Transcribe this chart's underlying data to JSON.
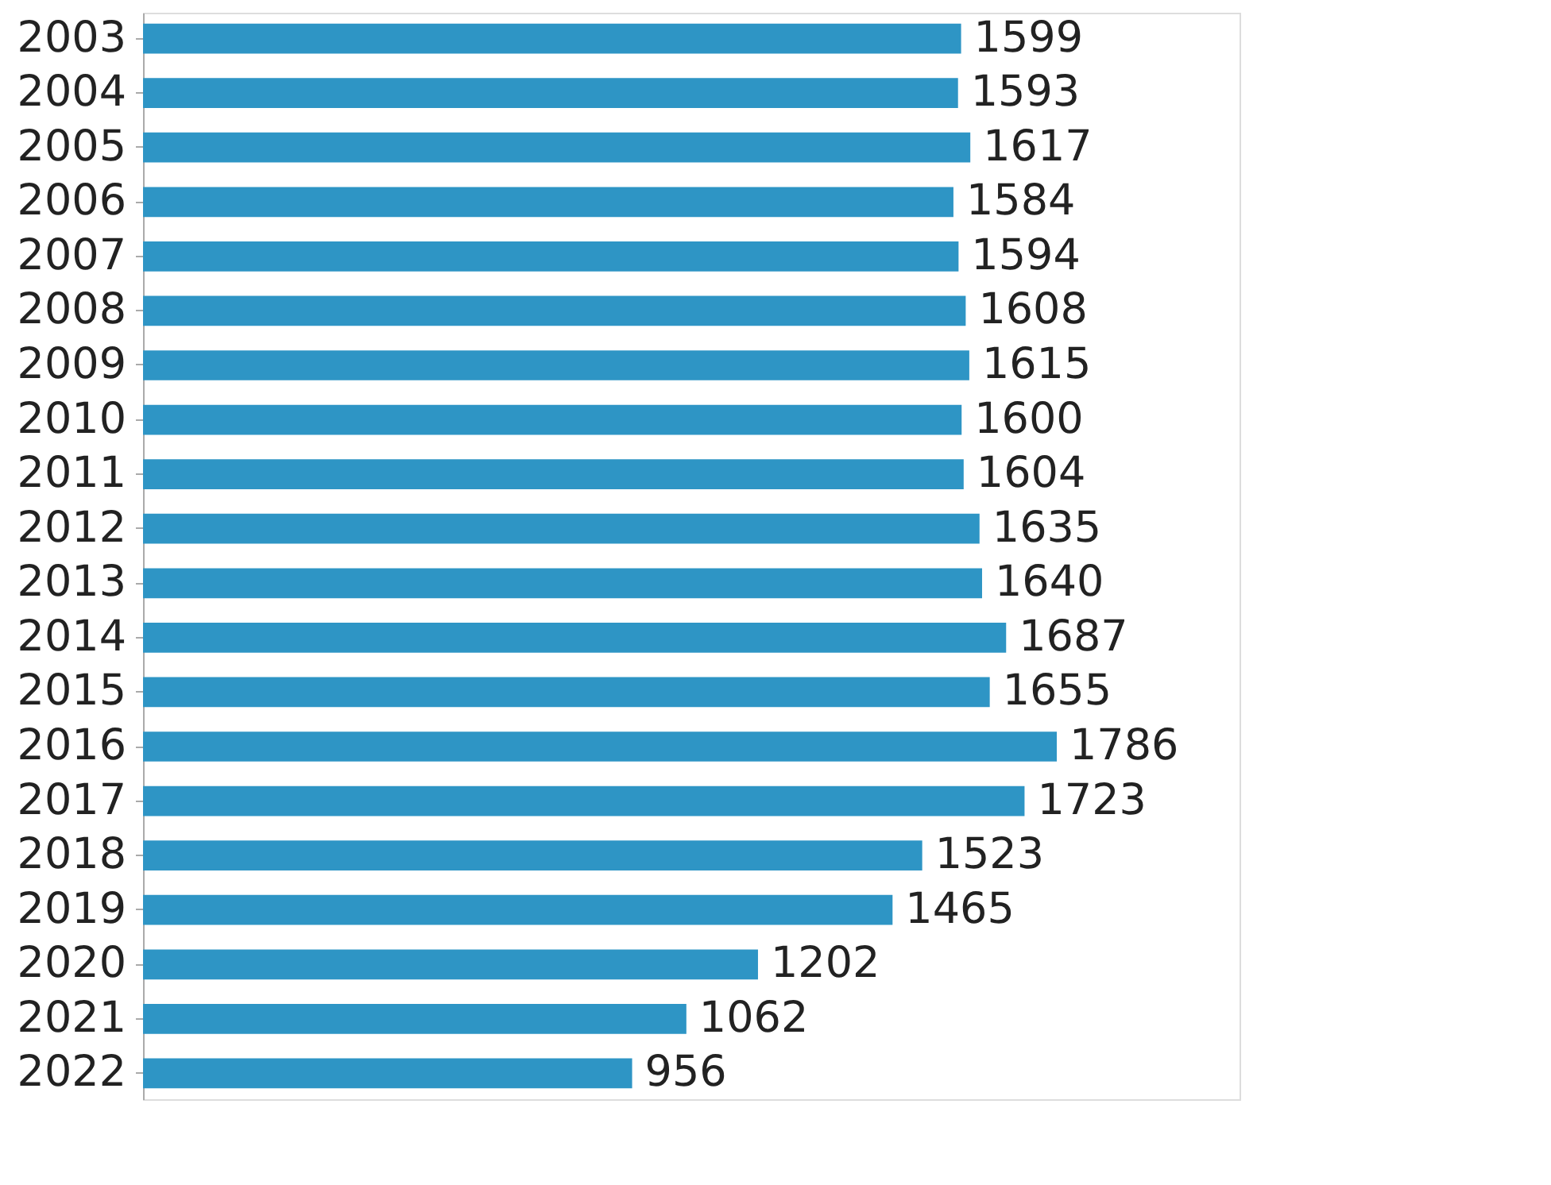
{
  "chart_data": {
    "type": "bar",
    "orientation": "horizontal",
    "categories": [
      "2003",
      "2004",
      "2005",
      "2006",
      "2007",
      "2008",
      "2009",
      "2010",
      "2011",
      "2012",
      "2013",
      "2014",
      "2015",
      "2016",
      "2017",
      "2018",
      "2019",
      "2020",
      "2021",
      "2022"
    ],
    "values": [
      1599,
      1593,
      1617,
      1584,
      1594,
      1608,
      1615,
      1600,
      1604,
      1635,
      1640,
      1687,
      1655,
      1786,
      1723,
      1523,
      1465,
      1202,
      1062,
      956
    ],
    "color": "#2e95c5",
    "data_labels": true
  }
}
